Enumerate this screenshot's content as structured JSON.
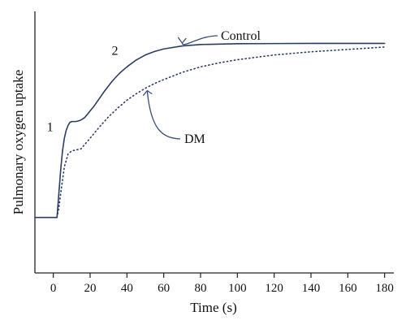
{
  "chart_data": {
    "type": "line",
    "title": "",
    "xlabel": "Time (s)",
    "ylabel": "Pulmonary oxygen uptake",
    "xlim": [
      -10,
      185
    ],
    "ylim": [
      -0.35,
      1.3
    ],
    "x_ticks": [
      0,
      20,
      40,
      60,
      80,
      100,
      120,
      140,
      160,
      180
    ],
    "y_ticks_shown": false,
    "grid": false,
    "series": [
      {
        "name": "Control",
        "style": "solid",
        "color": "#2b3d66",
        "x": [
          -10,
          2,
          3,
          4,
          5,
          6,
          7,
          8,
          9,
          10,
          11,
          12,
          13,
          14,
          15,
          16,
          17,
          18,
          20,
          22,
          25,
          28,
          32,
          36,
          40,
          45,
          50,
          55,
          60,
          70,
          80,
          100,
          120,
          140,
          160,
          180
        ],
        "y": [
          0,
          0,
          0.15,
          0.3,
          0.42,
          0.5,
          0.55,
          0.58,
          0.6,
          0.605,
          0.605,
          0.605,
          0.607,
          0.61,
          0.615,
          0.622,
          0.63,
          0.643,
          0.672,
          0.7,
          0.75,
          0.8,
          0.86,
          0.91,
          0.95,
          0.993,
          1.025,
          1.047,
          1.063,
          1.082,
          1.091,
          1.096,
          1.097,
          1.098,
          1.098,
          1.098
        ]
      },
      {
        "name": "DM",
        "style": "dotted",
        "color": "#2b3d66",
        "x": [
          2,
          3,
          4,
          6,
          8,
          10,
          12,
          14,
          15,
          17,
          20,
          25,
          30,
          35,
          40,
          45,
          50,
          55,
          60,
          70,
          80,
          90,
          100,
          120,
          140,
          160,
          180
        ],
        "y": [
          0,
          0.06,
          0.15,
          0.32,
          0.4,
          0.42,
          0.425,
          0.43,
          0.432,
          0.46,
          0.5,
          0.57,
          0.635,
          0.69,
          0.74,
          0.78,
          0.815,
          0.845,
          0.87,
          0.915,
          0.95,
          0.975,
          0.995,
          1.025,
          1.045,
          1.06,
          1.075
        ]
      }
    ],
    "annotations": [
      {
        "text": "Control",
        "arrow_to": [
          70,
          1.09
        ]
      },
      {
        "text": "DM",
        "arrow_to": [
          51,
          0.81
        ]
      },
      {
        "text": "1",
        "near": [
          0,
          0.55
        ]
      },
      {
        "text": "2",
        "near": [
          33,
          1.03
        ]
      }
    ]
  }
}
